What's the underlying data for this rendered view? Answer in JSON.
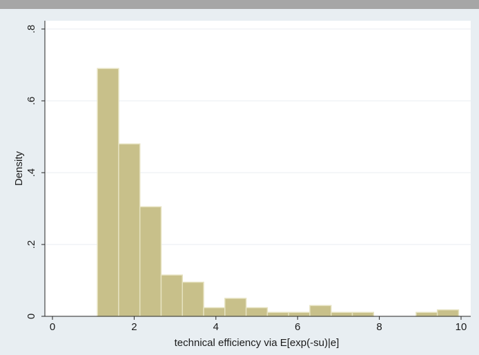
{
  "chart_data": {
    "type": "bar",
    "subtype": "histogram",
    "xlabel": "technical efficiency via E[exp(-su)|e]",
    "ylabel": "Density",
    "xlim": [
      -0.2,
      10.2
    ],
    "ylim": [
      0,
      0.8
    ],
    "x_ticks": [
      0,
      2,
      4,
      6,
      8,
      10
    ],
    "x_tick_labels": [
      "0",
      "2",
      "4",
      "6",
      "8",
      "10"
    ],
    "y_ticks": [
      0,
      0.2,
      0.4,
      0.6,
      0.8
    ],
    "y_tick_labels": [
      "0",
      ".2",
      ".4",
      ".6",
      ".8"
    ],
    "grid": true,
    "bin_width": 0.52,
    "bins": [
      {
        "x0": 1.1,
        "x1": 1.62,
        "value": 0.69
      },
      {
        "x0": 1.62,
        "x1": 2.14,
        "value": 0.48
      },
      {
        "x0": 2.14,
        "x1": 2.66,
        "value": 0.305
      },
      {
        "x0": 2.66,
        "x1": 3.18,
        "value": 0.115
      },
      {
        "x0": 3.18,
        "x1": 3.7,
        "value": 0.095
      },
      {
        "x0": 3.7,
        "x1": 4.22,
        "value": 0.024
      },
      {
        "x0": 4.22,
        "x1": 4.74,
        "value": 0.05
      },
      {
        "x0": 4.74,
        "x1": 5.26,
        "value": 0.024
      },
      {
        "x0": 5.26,
        "x1": 5.78,
        "value": 0.011
      },
      {
        "x0": 5.78,
        "x1": 6.3,
        "value": 0.011
      },
      {
        "x0": 6.3,
        "x1": 6.82,
        "value": 0.03
      },
      {
        "x0": 6.82,
        "x1": 7.34,
        "value": 0.011
      },
      {
        "x0": 7.34,
        "x1": 7.86,
        "value": 0.011
      },
      {
        "x0": 8.9,
        "x1": 9.42,
        "value": 0.011
      },
      {
        "x0": 9.42,
        "x1": 9.94,
        "value": 0.018
      }
    ],
    "colors": {
      "bar_fill": "#c8c08a",
      "bar_edge": "#e6e2c0",
      "plot_background": "#ffffff",
      "outer_background": "#e8eef2",
      "grid": "#e9eef1"
    }
  }
}
